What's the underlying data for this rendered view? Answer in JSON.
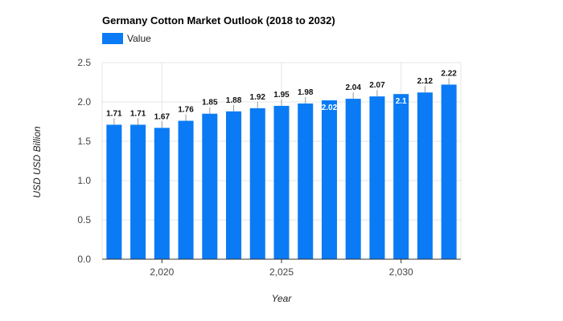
{
  "chart_data": {
    "type": "bar",
    "title": "Germany Cotton Market Outlook (2018 to 2032)",
    "xlabel": "Year",
    "ylabel": "USD USD Billion",
    "legend": {
      "position": "top-left",
      "entries": [
        "Value"
      ]
    },
    "grid": true,
    "color": "#0a7bf5",
    "x": [
      2018,
      2019,
      2020,
      2021,
      2022,
      2023,
      2024,
      2025,
      2026,
      2027,
      2028,
      2029,
      2030,
      2031,
      2032
    ],
    "series": [
      {
        "name": "Value",
        "values": [
          1.71,
          1.71,
          1.67,
          1.76,
          1.85,
          1.88,
          1.92,
          1.95,
          1.98,
          2.02,
          2.04,
          2.07,
          2.1,
          2.12,
          2.22
        ]
      }
    ],
    "data_labels": [
      "1.71",
      "1.71",
      "1.67",
      "1.76",
      "1.85",
      "1.88",
      "1.92",
      "1.95",
      "1.98",
      "2.02",
      "2.04",
      "2.07",
      "2.1",
      "2.12",
      "2.22"
    ],
    "ylim": [
      0,
      2.5
    ],
    "y_ticks": [
      0,
      0.5,
      1,
      1.5,
      2,
      2.5
    ],
    "y_tick_labels": [
      "0.0",
      "0.5",
      "1.0",
      "1.5",
      "2.0",
      "2.5"
    ],
    "x_ticks": [
      2020,
      2025,
      2030
    ],
    "x_tick_labels": [
      "2,020",
      "2,025",
      "2,030"
    ]
  }
}
